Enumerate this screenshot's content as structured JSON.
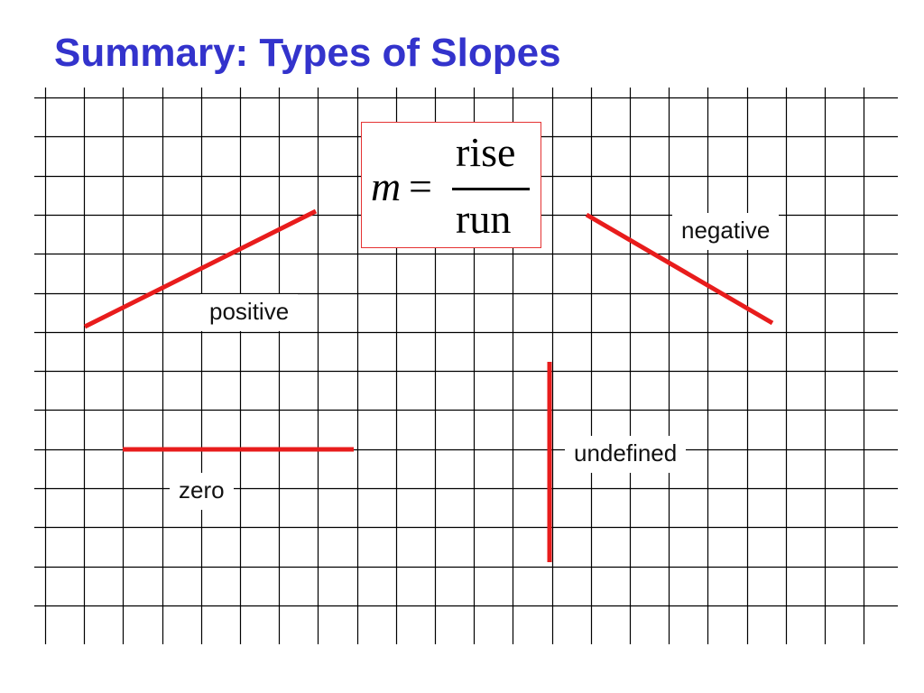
{
  "title": "Summary: Types of Slopes",
  "formula": {
    "variable": "m",
    "equals": "=",
    "numerator": "rise",
    "denominator": "run"
  },
  "labels": {
    "positive": "positive",
    "negative": "negative",
    "zero": "zero",
    "undefined": "undefined"
  },
  "colors": {
    "title": "#3333cc",
    "slope_lines": "#e81c1c",
    "grid": "#000000",
    "formula_border": "#e53333"
  }
}
